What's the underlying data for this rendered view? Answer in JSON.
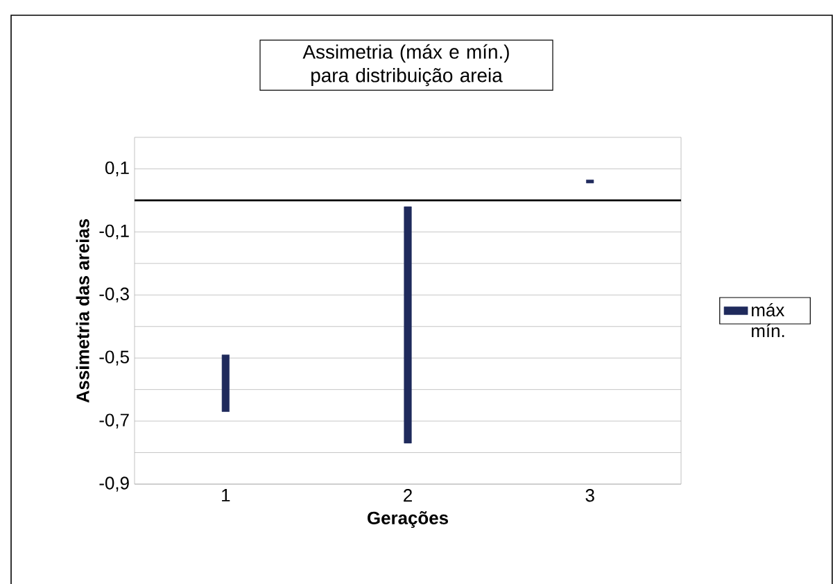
{
  "chart_data": {
    "type": "bar",
    "title": "Assimetria (máx e mín.) para distribuição areia",
    "xlabel": "Gerações",
    "ylabel": "Assimetria das areias",
    "categories": [
      "1",
      "2",
      "3"
    ],
    "series": [
      {
        "name": "máx mín.",
        "color": "#1f2a5c",
        "base": [
          -0.67,
          -0.77,
          0.055
        ],
        "values": [
          0.18,
          0.75,
          0.01
        ]
      }
    ],
    "ylim": [
      -0.9,
      0.2
    ],
    "yticks": [
      {
        "value": -0.9,
        "label": "-0,9"
      },
      {
        "value": -0.8,
        "label": null
      },
      {
        "value": -0.7,
        "label": "-0,7"
      },
      {
        "value": -0.6,
        "label": null
      },
      {
        "value": -0.5,
        "label": "-0,5"
      },
      {
        "value": -0.4,
        "label": null
      },
      {
        "value": -0.3,
        "label": "-0,3"
      },
      {
        "value": -0.2,
        "label": null
      },
      {
        "value": -0.1,
        "label": "-0,1"
      },
      {
        "value": 0,
        "label": null
      },
      {
        "value": 0.1,
        "label": "0,1"
      }
    ],
    "grid": "y",
    "legend": "right",
    "ref_lines": [
      {
        "axis": "y",
        "value": 0,
        "color": "#000000"
      }
    ]
  }
}
